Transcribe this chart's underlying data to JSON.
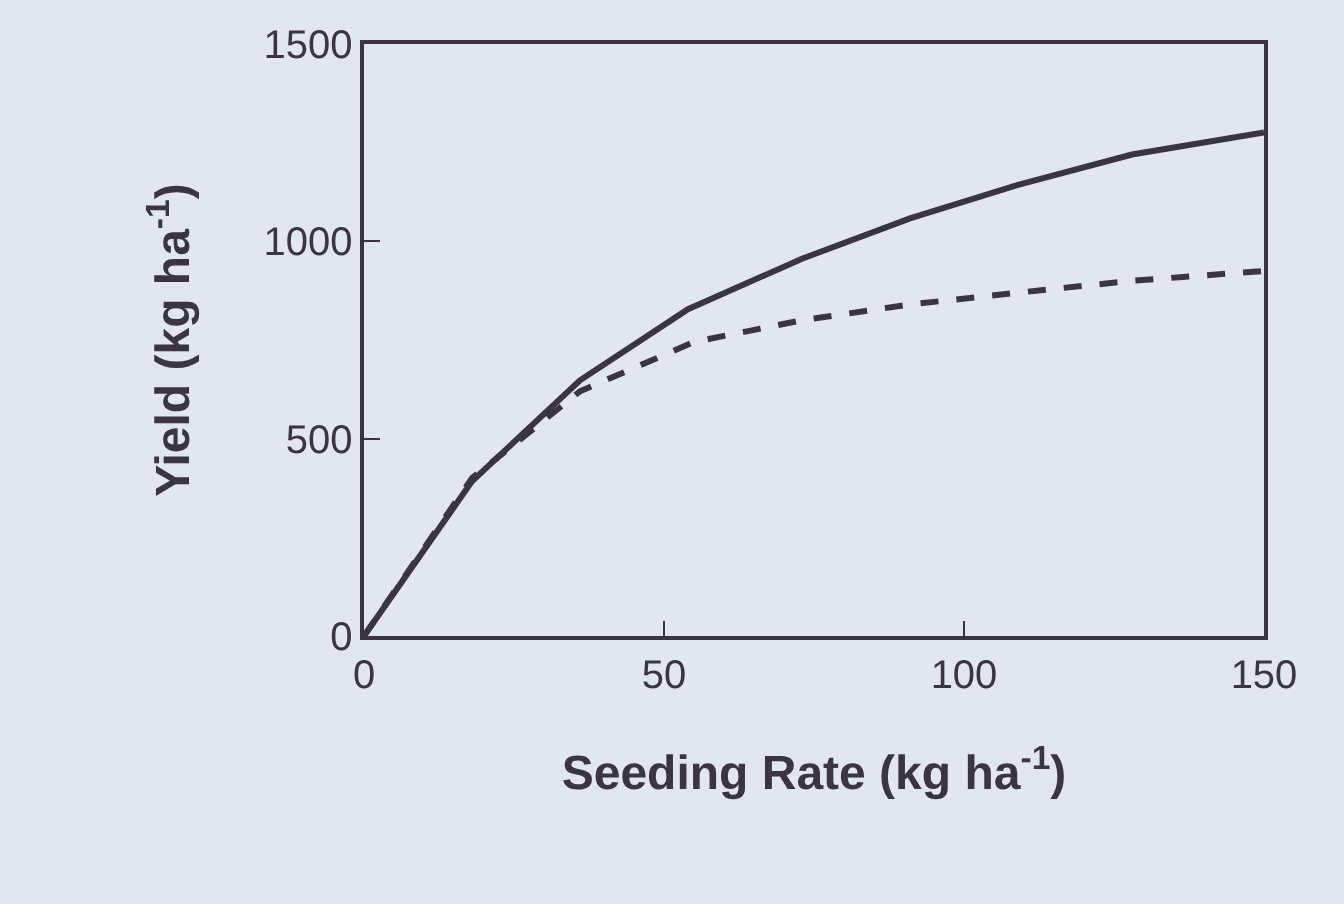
{
  "chart_data": {
    "type": "line",
    "xlabel": "Seeding Rate (kg ha$^{-1}$)",
    "ylabel": "Yield (kg ha$^{-1}$)",
    "xlim": [
      0,
      150
    ],
    "xticks": [
      0,
      50,
      100,
      150
    ],
    "ylim": [
      0,
      1500
    ],
    "yticks": [
      0,
      500,
      1000,
      1500
    ],
    "grid": false,
    "marker": "none",
    "series": [
      {
        "color": "#3a3540",
        "line_style": "solid",
        "x": [
          0,
          18,
          36,
          54,
          73,
          91,
          109,
          128,
          150
        ],
        "values": [
          0,
          392,
          648,
          828,
          956,
          1058,
          1143,
          1220,
          1276
        ]
      },
      {
        "color": "#3a3540",
        "line_style": "dashed",
        "x": [
          0,
          18,
          36,
          55,
          73,
          91,
          109,
          128,
          150
        ],
        "values": [
          0,
          400,
          620,
          745,
          800,
          840,
          870,
          900,
          925
        ]
      }
    ]
  }
}
